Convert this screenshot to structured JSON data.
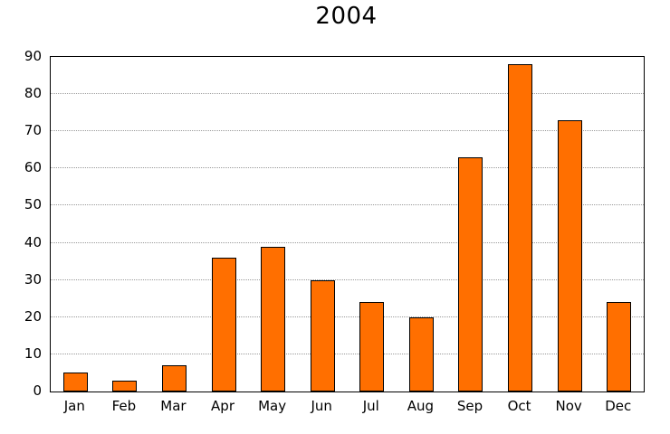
{
  "chart_data": {
    "type": "bar",
    "title": "2004",
    "categories": [
      "Jan",
      "Feb",
      "Mar",
      "Apr",
      "May",
      "Jun",
      "Jul",
      "Aug",
      "Sep",
      "Oct",
      "Nov",
      "Dec"
    ],
    "values": [
      5,
      3,
      7,
      36,
      39,
      30,
      24,
      20,
      63,
      88,
      73,
      24
    ],
    "xlabel": "",
    "ylabel": "",
    "ylim": [
      0,
      90
    ],
    "ytick_step": 10,
    "grid": "horizontal-dotted",
    "legend": "none",
    "bar_color": "#ff6f00",
    "bar_border_color": "#000000",
    "gridline_color": "#9a9a9a",
    "axis_color": "#000000",
    "background_color": "#ffffff"
  }
}
